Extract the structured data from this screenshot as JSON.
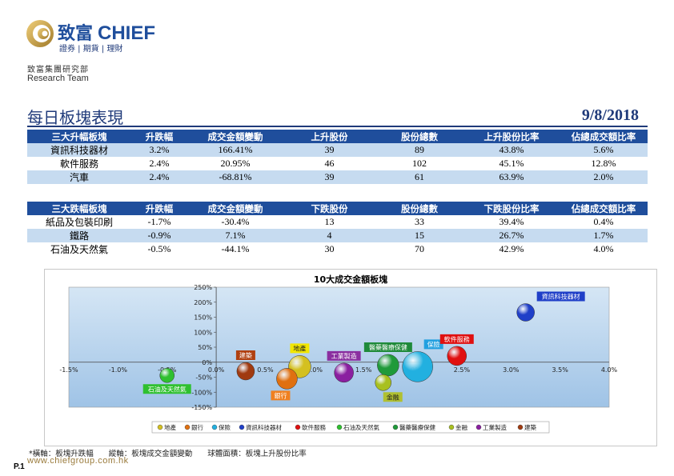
{
  "brand": {
    "name_cn": "致富",
    "name_en": "CHIEF",
    "tagline": "證券 | 期貨 | 理財"
  },
  "org": {
    "dept": "致富集團研究部",
    "team": "Research Team"
  },
  "page_title": "每日板塊表現",
  "date": "9/8/2018",
  "table_up": {
    "headers": [
      "三大升幅板塊",
      "升跌幅",
      "成交金額變動",
      "上升股份",
      "股份總數",
      "上升股份比率",
      "佔總成交額比率"
    ],
    "rows": [
      [
        "資訊科技器材",
        "3.2%",
        "166.41%",
        "39",
        "89",
        "43.8%",
        "5.6%"
      ],
      [
        "軟件服務",
        "2.4%",
        "20.95%",
        "46",
        "102",
        "45.1%",
        "12.8%"
      ],
      [
        "汽車",
        "2.4%",
        "-68.81%",
        "39",
        "61",
        "63.9%",
        "2.0%"
      ]
    ]
  },
  "table_down": {
    "headers": [
      "三大跌幅板塊",
      "升跌幅",
      "成交金額變動",
      "下跌股份",
      "股份總數",
      "下跌股份比率",
      "佔總成交額比率"
    ],
    "rows": [
      [
        "紙品及包裝印刷",
        "-1.7%",
        "-30.4%",
        "13",
        "33",
        "39.4%",
        "0.4%"
      ],
      [
        "鐵路",
        "-0.9%",
        "7.1%",
        "4",
        "15",
        "26.7%",
        "1.7%"
      ],
      [
        "石油及天然氣",
        "-0.5%",
        "-44.1%",
        "30",
        "70",
        "42.9%",
        "4.0%"
      ]
    ]
  },
  "chart_data": {
    "type": "bubble",
    "title": "10大成交金額板塊",
    "xlim": [
      -1.5,
      4.0
    ],
    "ylim": [
      -150,
      250
    ],
    "x_ticks": [
      "-1.5%",
      "-1.0%",
      "-0.5%",
      "0.0%",
      "0.5%",
      "1.0%",
      "1.5%",
      "2.0%",
      "2.5%",
      "3.0%",
      "3.5%",
      "4.0%"
    ],
    "y_ticks": [
      "250%",
      "200%",
      "150%",
      "100%",
      "50%",
      "0%",
      "-50%",
      "-100%",
      "-150%"
    ],
    "series": [
      {
        "name": "地產",
        "x": 0.85,
        "y": -15,
        "size": 28,
        "color": "#d4c020",
        "label_color": "#f2e600"
      },
      {
        "name": "銀行",
        "x": 0.72,
        "y": -55,
        "size": 26,
        "color": "#e07010",
        "label_color": "#f08020"
      },
      {
        "name": "保險",
        "x": 2.05,
        "y": -15,
        "size": 38,
        "color": "#22b0e0",
        "label_color": "#22a0e0"
      },
      {
        "name": "資訊科技器材",
        "x": 3.15,
        "y": 166,
        "size": 22,
        "color": "#1f3fc8",
        "label_color": "#1f3fc8"
      },
      {
        "name": "軟件服務",
        "x": 2.45,
        "y": 21,
        "size": 24,
        "color": "#e01010",
        "label_color": "#e01010"
      },
      {
        "name": "石油及天然氣",
        "x": -0.5,
        "y": -44,
        "size": 18,
        "color": "#2fc02f",
        "label_color": "#2fc02f"
      },
      {
        "name": "醫藥醫療保健",
        "x": 1.75,
        "y": -10,
        "size": 27,
        "color": "#1f9a3a",
        "label_color": "#1f8a3a"
      },
      {
        "name": "金融",
        "x": 1.7,
        "y": -68,
        "size": 20,
        "color": "#a8c020",
        "label_color": "#b0c030"
      },
      {
        "name": "工業製造",
        "x": 1.3,
        "y": -35,
        "size": 24,
        "color": "#8a1fa0",
        "label_color": "#8a2fa0"
      },
      {
        "name": "建築",
        "x": 0.3,
        "y": -30,
        "size": 22,
        "color": "#a03a10",
        "label_color": "#b04010"
      }
    ]
  },
  "footnote": "*橫軸：板塊升跌幅　　縱軸：板塊成交金額變動　　球體面積：板塊上升股份比率",
  "website": "www.chiefgroup.com.hk",
  "page_no": "P.1"
}
